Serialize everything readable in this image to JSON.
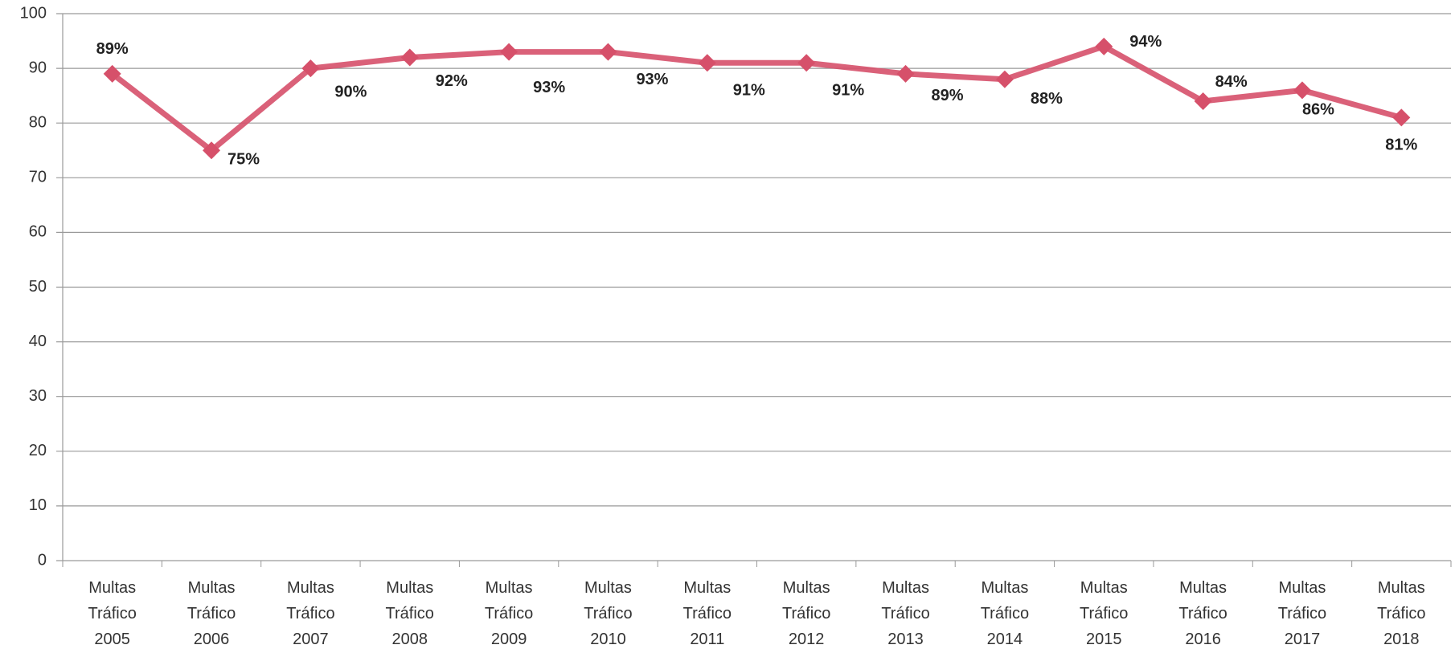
{
  "chart_data": {
    "type": "line",
    "categories": [
      "Multas Tráfico 2005",
      "Multas Tráfico 2006",
      "Multas Tráfico 2007",
      "Multas Tráfico 2008",
      "Multas Tráfico 2009",
      "Multas Tráfico 2010",
      "Multas Tráfico 2011",
      "Multas Tráfico 2012",
      "Multas Tráfico 2013",
      "Multas Tráfico 2014",
      "Multas Tráfico 2015",
      "Multas Tráfico 2016",
      "Multas Tráfico 2017",
      "Multas Tráfico 2018"
    ],
    "series": [
      {
        "color": "#d6506a",
        "values": [
          89,
          75,
          90,
          92,
          93,
          93,
          91,
          91,
          89,
          88,
          94,
          84,
          86,
          81
        ],
        "value_labels": [
          "89%",
          "75%",
          "90%",
          "92%",
          "93%",
          "93%",
          "91%",
          "91%",
          "89%",
          "88%",
          "94%",
          "84%",
          "86%",
          "81%"
        ]
      }
    ],
    "ylim": [
      0,
      100
    ],
    "yticks": [
      0,
      10,
      20,
      30,
      40,
      50,
      60,
      70,
      80,
      90,
      100
    ],
    "grid": true
  }
}
